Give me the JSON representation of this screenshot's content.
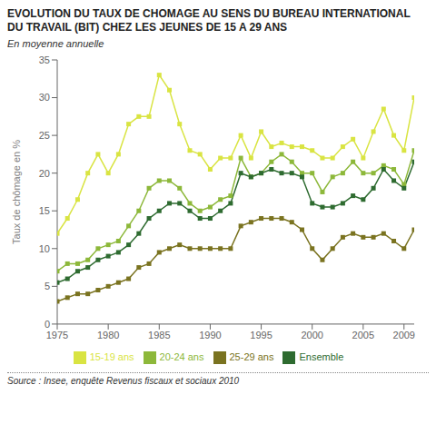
{
  "chart_data": {
    "type": "line",
    "title": "EVOLUTION DU TAUX DE CHOMAGE AU SENS DU BUREAU INTERNATIONAL DU TRAVAIL (BIT) CHEZ LES JEUNES DE 15 A 29 ANS",
    "subtitle": "En moyenne annuelle",
    "y_label": "Taux de chômage en %",
    "annotations": [
      "Source : Insee, enquête Revenus fiscaux et sociaux 2010"
    ],
    "x": [
      1975,
      1976,
      1977,
      1978,
      1979,
      1980,
      1981,
      1982,
      1983,
      1984,
      1985,
      1986,
      1987,
      1988,
      1989,
      1990,
      1991,
      1992,
      1993,
      1994,
      1995,
      1996,
      1997,
      1998,
      1999,
      2000,
      2001,
      2002,
      2003,
      2004,
      2005,
      2006,
      2007,
      2008,
      2009,
      2010
    ],
    "series": [
      {
        "name": "15-19 ans",
        "color": "#d9e442",
        "values": [
          12.0,
          14.0,
          16.5,
          20.0,
          22.5,
          20.0,
          22.5,
          26.5,
          27.5,
          27.5,
          33.0,
          31.0,
          26.5,
          23.0,
          22.5,
          20.5,
          22.0,
          22.0,
          25.0,
          22.0,
          25.5,
          23.5,
          24.0,
          23.5,
          23.5,
          23.0,
          22.0,
          22.0,
          23.5,
          24.5,
          22.0,
          25.5,
          28.5,
          25.0,
          23.0,
          30.0
        ]
      },
      {
        "name": "20-24 ans",
        "color": "#8db83a",
        "values": [
          7.0,
          8.0,
          8.0,
          8.5,
          10.0,
          10.5,
          11.0,
          13.0,
          15.0,
          18.0,
          19.0,
          19.0,
          18.0,
          16.0,
          15.0,
          15.5,
          16.5,
          17.0,
          22.0,
          19.5,
          20.0,
          21.5,
          22.5,
          21.5,
          20.0,
          20.0,
          17.5,
          19.5,
          20.0,
          21.5,
          20.0,
          20.0,
          21.0,
          20.5,
          18.5,
          23.0
        ]
      },
      {
        "name": "25-29 ans",
        "color": "#7a7320",
        "values": [
          3.0,
          3.5,
          4.0,
          4.0,
          4.5,
          5.0,
          5.5,
          6.0,
          7.5,
          8.0,
          9.5,
          10.0,
          10.5,
          10.0,
          10.0,
          10.0,
          10.0,
          10.0,
          13.0,
          13.5,
          14.0,
          14.0,
          14.0,
          13.5,
          12.5,
          10.0,
          8.5,
          10.0,
          11.5,
          12.0,
          11.5,
          11.5,
          12.0,
          11.0,
          10.0,
          12.5
        ]
      },
      {
        "name": "Ensemble",
        "color": "#2e6b30",
        "values": [
          5.5,
          6.0,
          7.0,
          7.5,
          8.5,
          9.0,
          9.5,
          10.5,
          12.0,
          14.0,
          15.0,
          16.0,
          16.0,
          15.0,
          14.0,
          14.0,
          15.0,
          16.0,
          20.0,
          19.5,
          20.0,
          20.5,
          20.0,
          20.0,
          19.5,
          16.0,
          15.5,
          15.5,
          16.0,
          17.0,
          16.5,
          18.0,
          20.5,
          19.0,
          18.0,
          21.5
        ]
      }
    ],
    "xlim": [
      1975,
      2010
    ],
    "xticks": [
      1975,
      1980,
      1985,
      1990,
      1995,
      2000,
      2005,
      2009
    ],
    "ylim": [
      0,
      35
    ],
    "yticks": [
      0,
      5,
      10,
      15,
      20,
      25,
      30,
      35
    ],
    "marker": "square",
    "grid": false,
    "legend": "bottom"
  }
}
